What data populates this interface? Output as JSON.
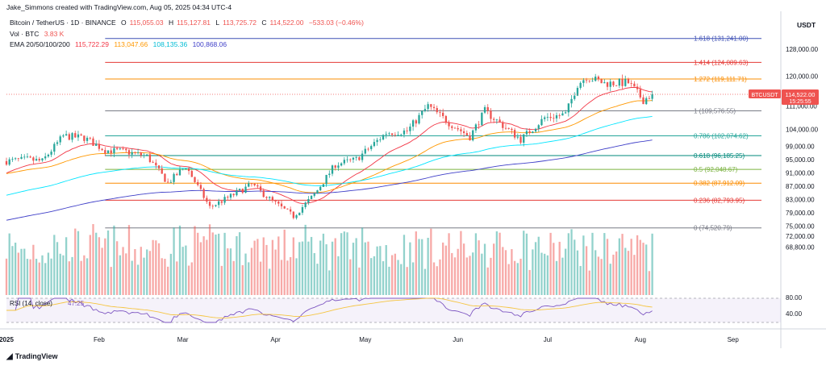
{
  "header": {
    "author_line": "Jake_Simmons created with TradingView.com, Aug 05, 2025 04:34 UTC-4",
    "symbol_line": "Bitcoin / TetherUS · 1D · BINANCE",
    "ohlc": {
      "o_label": "O",
      "o": "115,055.03",
      "h_label": "H",
      "h": "115,127.81",
      "l_label": "L",
      "l": "113,725.72",
      "c_label": "C",
      "c": "114,522.00",
      "change": "−533.03 (−0.46%)"
    },
    "vol_label": "Vol · BTC",
    "vol_value": "3.83 K",
    "ema_label": "EMA 20/50/100/200",
    "ema_values": [
      "115,722.29",
      "113,047.66",
      "108,135.36",
      "100,868.06"
    ]
  },
  "currency": "USDT",
  "price_tag": {
    "symbol": "BTCUSDT",
    "price": "114,522.00",
    "countdown": "15:25:55"
  },
  "rsi": {
    "label": "RSI (14, close)",
    "value": "47.25",
    "levels": [
      "80.00",
      "40.00"
    ]
  },
  "brand": "TradingView",
  "colors": {
    "up": "#26a69a",
    "down": "#ef5350",
    "ema20": "#f23645",
    "ema50": "#ff9800",
    "ema100": "#00e5ff",
    "ema200": "#3f3fc8",
    "rsi": "#7e57c2",
    "rsi_ma": "#f5c542"
  },
  "chart_data": {
    "type": "candlestick",
    "title": "Bitcoin / TetherUS · 1D · BINANCE",
    "xlabel": "",
    "ylabel": "",
    "x_ticks": [
      "2025",
      "Feb",
      "Mar",
      "Apr",
      "May",
      "Jun",
      "Jul",
      "Aug",
      "Sep"
    ],
    "y_ticks": [
      "128,000.00",
      "120,000.00",
      "111,000.00",
      "104,000.00",
      "99,000.00",
      "95,000.00",
      "91,000.00",
      "87,000.00",
      "83,000.00",
      "79,000.00",
      "75,000.00",
      "72,000.00",
      "68,800.00"
    ],
    "ylim": [
      66000,
      136000
    ],
    "grid": false,
    "fibonacci": [
      {
        "ratio": "1.618",
        "label": "1.618 (131,241.00)",
        "price": 131241.0,
        "color": "#3f51b5"
      },
      {
        "ratio": "1.414",
        "label": "1.414 (124,089.63)",
        "price": 124089.63,
        "color": "#e53935"
      },
      {
        "ratio": "1.272",
        "label": "1.272 (119,111.71)",
        "price": 119111.71,
        "color": "#fb8c00"
      },
      {
        "ratio": "1",
        "label": "1 (109,576.55)",
        "price": 109576.55,
        "color": "#787b86"
      },
      {
        "ratio": "0.786",
        "label": "0.786 (102,074.62)",
        "price": 102074.62,
        "color": "#26a69a"
      },
      {
        "ratio": "0.618",
        "label": "0.618 (96,185.25)",
        "price": 96185.25,
        "color": "#00897b"
      },
      {
        "ratio": "0.5",
        "label": "0.5 (92,048.67)",
        "price": 92048.67,
        "color": "#7cb342"
      },
      {
        "ratio": "0.382",
        "label": "0.382 (87,912.09)",
        "price": 87912.09,
        "color": "#fb8c00"
      },
      {
        "ratio": "0.236",
        "label": "0.236 (82,793.95)",
        "price": 82793.95,
        "color": "#e53935"
      },
      {
        "ratio": "0",
        "label": "0 (74,520.79)",
        "price": 74520.79,
        "color": "#787b86"
      }
    ],
    "anchors": [
      {
        "date": "2025-01-01",
        "price": 94500
      },
      {
        "date": "2025-01-08",
        "price": 95000
      },
      {
        "date": "2025-01-13",
        "price": 94500
      },
      {
        "date": "2025-01-20",
        "price": 102000
      },
      {
        "date": "2025-01-27",
        "price": 101500
      },
      {
        "date": "2025-02-03",
        "price": 97800
      },
      {
        "date": "2025-02-10",
        "price": 97300
      },
      {
        "date": "2025-02-17",
        "price": 96000
      },
      {
        "date": "2025-02-24",
        "price": 88000
      },
      {
        "date": "2025-03-02",
        "price": 93000
      },
      {
        "date": "2025-03-10",
        "price": 80700
      },
      {
        "date": "2025-03-17",
        "price": 84000
      },
      {
        "date": "2025-03-24",
        "price": 87500
      },
      {
        "date": "2025-03-31",
        "price": 82500
      },
      {
        "date": "2025-04-07",
        "price": 78000
      },
      {
        "date": "2025-04-14",
        "price": 84500
      },
      {
        "date": "2025-04-21",
        "price": 93500
      },
      {
        "date": "2025-04-28",
        "price": 95000
      },
      {
        "date": "2025-05-08",
        "price": 103000
      },
      {
        "date": "2025-05-15",
        "price": 103500
      },
      {
        "date": "2025-05-22",
        "price": 111000
      },
      {
        "date": "2025-05-29",
        "price": 106000
      },
      {
        "date": "2025-06-05",
        "price": 101800
      },
      {
        "date": "2025-06-10",
        "price": 109500
      },
      {
        "date": "2025-06-17",
        "price": 104500
      },
      {
        "date": "2025-06-22",
        "price": 101000
      },
      {
        "date": "2025-06-30",
        "price": 107500
      },
      {
        "date": "2025-07-07",
        "price": 108500
      },
      {
        "date": "2025-07-11",
        "price": 117500
      },
      {
        "date": "2025-07-14",
        "price": 119800
      },
      {
        "date": "2025-07-20",
        "price": 117800
      },
      {
        "date": "2025-07-28",
        "price": 118000
      },
      {
        "date": "2025-08-02",
        "price": 112800
      },
      {
        "date": "2025-08-05",
        "price": 114522
      }
    ]
  }
}
